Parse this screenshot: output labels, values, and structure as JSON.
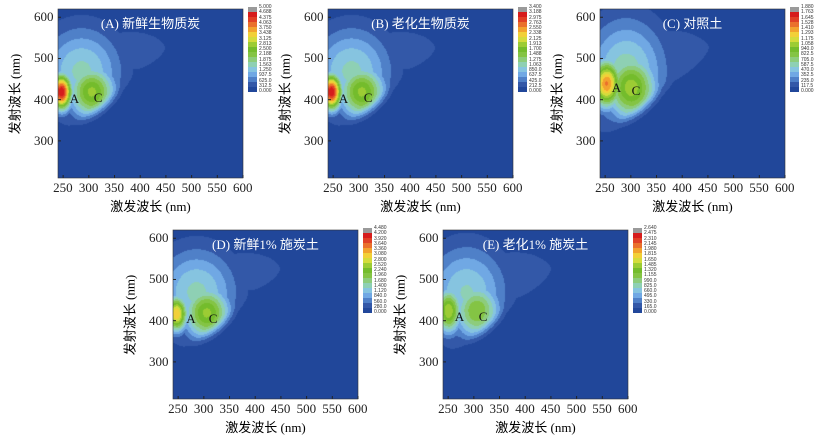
{
  "palette": [
    "#21479a",
    "#3358a8",
    "#4f80c8",
    "#70a8e4",
    "#86c4e0",
    "#8ed0b4",
    "#8dcc7c",
    "#84c444",
    "#74bc2c",
    "#9ccc34",
    "#d4dc3c",
    "#f2d038",
    "#f2a22e",
    "#ea702c",
    "#e04026",
    "#d61c1c",
    "#9a9a9a"
  ],
  "chart_data": [
    {
      "type": "heatmap",
      "title": "(A) 新鲜生物质炭",
      "xlabel": "激发波长 (nm)",
      "ylabel": "发射波长 (nm)",
      "xlim": [
        240,
        600
      ],
      "ylim": [
        210,
        620
      ],
      "xticks": [
        "250",
        "300",
        "350",
        "400",
        "450",
        "500",
        "550",
        "600"
      ],
      "yticks": [
        "300",
        "400",
        "500",
        "600"
      ],
      "colorbar": [
        "5.000",
        "4.688",
        "4.375",
        "4.063",
        "3.750",
        "3.438",
        "3.125",
        "2.813",
        "2.500",
        "2.188",
        "1.875",
        "1.563",
        "1.250",
        "937.5",
        "625.0",
        "312.5",
        "0.000"
      ],
      "max": 5.0,
      "peaks": [
        {
          "label": "A",
          "ex": 272,
          "em": 402,
          "value": 5.0
        },
        {
          "label": "C",
          "ex": 318,
          "em": 405,
          "value": 3.0
        }
      ]
    },
    {
      "type": "heatmap",
      "title": "(B) 老化生物质炭",
      "xlabel": "激发波长 (nm)",
      "ylabel": "发射波长 (nm)",
      "xlim": [
        240,
        600
      ],
      "ylim": [
        210,
        620
      ],
      "xticks": [
        "250",
        "300",
        "350",
        "400",
        "450",
        "500",
        "550",
        "600"
      ],
      "yticks": [
        "300",
        "400",
        "500",
        "600"
      ],
      "colorbar": [
        "3.400",
        "3.188",
        "2.975",
        "2.763",
        "2.550",
        "2.338",
        "2.125",
        "1.913",
        "1.700",
        "1.488",
        "1.275",
        "1.063",
        "850.0",
        "637.5",
        "425.0",
        "212.5",
        "0.000"
      ],
      "max": 3.4,
      "peaks": [
        {
          "label": "A",
          "ex": 270,
          "em": 402,
          "value": 3.3
        },
        {
          "label": "C",
          "ex": 318,
          "em": 405,
          "value": 2.0
        }
      ]
    },
    {
      "type": "heatmap",
      "title": "(C) 对照土",
      "xlabel": "激发波长 (nm)",
      "ylabel": "发射波长 (nm)",
      "xlim": [
        240,
        600
      ],
      "ylim": [
        210,
        620
      ],
      "xticks": [
        "250",
        "300",
        "350",
        "400",
        "450",
        "500",
        "550",
        "600"
      ],
      "yticks": [
        "300",
        "400",
        "500",
        "600"
      ],
      "colorbar": [
        "1.880",
        "1.763",
        "1.645",
        "1.528",
        "1.410",
        "1.293",
        "1.175",
        "1.058",
        "940.0",
        "822.5",
        "705.0",
        "587.5",
        "470.0",
        "352.5",
        "235.0",
        "117.5",
        "0.000"
      ],
      "max": 1.88,
      "peaks": [
        {
          "label": "A",
          "ex": 272,
          "em": 428,
          "value": 1.5
        },
        {
          "label": "C",
          "ex": 310,
          "em": 420,
          "value": 1.0
        }
      ]
    },
    {
      "type": "heatmap",
      "title": "(D) 新鲜1% 施炭土",
      "xlabel": "激发波长 (nm)",
      "ylabel": "发射波长 (nm)",
      "xlim": [
        240,
        600
      ],
      "ylim": [
        210,
        620
      ],
      "xticks": [
        "250",
        "300",
        "350",
        "400",
        "450",
        "500",
        "550",
        "600"
      ],
      "yticks": [
        "300",
        "400",
        "500",
        "600"
      ],
      "colorbar": [
        "4.480",
        "4.200",
        "3.920",
        "3.640",
        "3.360",
        "3.080",
        "2.800",
        "2.520",
        "2.240",
        "1.960",
        "1.680",
        "1.400",
        "1.120",
        "840.0",
        "560.0",
        "280.0",
        "0.000"
      ],
      "max": 4.48,
      "peaks": [
        {
          "label": "A",
          "ex": 275,
          "em": 405,
          "value": 3.4
        },
        {
          "label": "C",
          "ex": 318,
          "em": 405,
          "value": 2.6
        }
      ]
    },
    {
      "type": "heatmap",
      "title": "(E) 老化1% 施炭土",
      "xlabel": "激发波长 (nm)",
      "ylabel": "发射波长 (nm)",
      "xlim": [
        240,
        600
      ],
      "ylim": [
        210,
        620
      ],
      "xticks": [
        "250",
        "300",
        "350",
        "400",
        "450",
        "500",
        "550",
        "600"
      ],
      "yticks": [
        "300",
        "400",
        "500",
        "600"
      ],
      "colorbar": [
        "2.640",
        "2.475",
        "2.310",
        "2.145",
        "1.980",
        "1.815",
        "1.650",
        "1.485",
        "1.320",
        "1.155",
        "990.0",
        "825.0",
        "660.0",
        "495.0",
        "330.0",
        "165.0",
        "0.000"
      ],
      "max": 2.64,
      "peaks": [
        {
          "label": "A",
          "ex": 272,
          "em": 410,
          "value": 1.7
        },
        {
          "label": "C",
          "ex": 318,
          "em": 410,
          "value": 1.3
        }
      ]
    }
  ]
}
